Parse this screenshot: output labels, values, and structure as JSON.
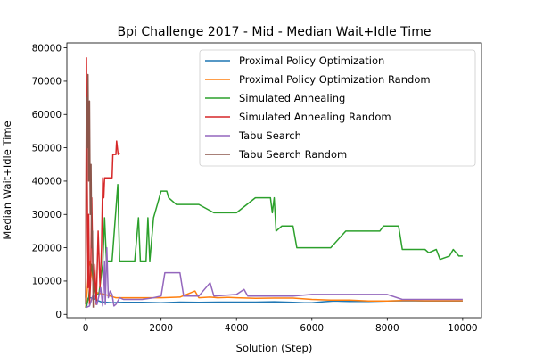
{
  "chart_data": {
    "type": "line",
    "title": "Bpi Challenge 2017 - Mid - Median Wait+Idle Time",
    "xlabel": "Solution (Step)",
    "ylabel": "Median Wait+Idle Time",
    "xlim": [
      -500,
      10500
    ],
    "ylim": [
      -1000,
      81500
    ],
    "xticks": [
      0,
      2000,
      4000,
      6000,
      8000,
      10000
    ],
    "yticks": [
      0,
      10000,
      20000,
      30000,
      40000,
      50000,
      60000,
      70000,
      80000
    ],
    "grid": false,
    "legend_position": "top-right",
    "series": [
      {
        "name": "Proximal Policy Optimization",
        "color": "#1f77b4",
        "points": [
          [
            0,
            2000
          ],
          [
            30,
            2600
          ],
          [
            60,
            4800
          ],
          [
            100,
            5100
          ],
          [
            200,
            4700
          ],
          [
            400,
            3800
          ],
          [
            700,
            3500
          ],
          [
            1000,
            3600
          ],
          [
            1500,
            3600
          ],
          [
            2000,
            3500
          ],
          [
            2500,
            3700
          ],
          [
            3000,
            3600
          ],
          [
            3500,
            3700
          ],
          [
            4000,
            3700
          ],
          [
            4500,
            3700
          ],
          [
            5000,
            3800
          ],
          [
            5500,
            3600
          ],
          [
            5800,
            3500
          ],
          [
            6000,
            3500
          ],
          [
            6300,
            3800
          ],
          [
            6600,
            4000
          ],
          [
            7000,
            3900
          ],
          [
            7500,
            3900
          ],
          [
            8000,
            4000
          ],
          [
            8500,
            4100
          ],
          [
            9000,
            4000
          ],
          [
            9500,
            4000
          ],
          [
            10000,
            4000
          ]
        ]
      },
      {
        "name": "Proximal Policy Optimization Random",
        "color": "#ff7f0e",
        "points": [
          [
            0,
            2000
          ],
          [
            40,
            7000
          ],
          [
            80,
            14000
          ],
          [
            120,
            16000
          ],
          [
            200,
            9000
          ],
          [
            300,
            6500
          ],
          [
            500,
            6000
          ],
          [
            800,
            5000
          ],
          [
            1000,
            5000
          ],
          [
            1500,
            5000
          ],
          [
            2000,
            5000
          ],
          [
            2500,
            5200
          ],
          [
            2900,
            7000
          ],
          [
            3000,
            5000
          ],
          [
            3300,
            5200
          ],
          [
            3500,
            5000
          ],
          [
            3800,
            5100
          ],
          [
            4000,
            5000
          ],
          [
            4500,
            4800
          ],
          [
            5000,
            4900
          ],
          [
            5500,
            4900
          ],
          [
            6000,
            4500
          ],
          [
            6500,
            4300
          ],
          [
            7000,
            4300
          ],
          [
            7500,
            4000
          ],
          [
            8000,
            4000
          ],
          [
            8500,
            4200
          ],
          [
            9000,
            4100
          ],
          [
            9500,
            4100
          ],
          [
            10000,
            4100
          ]
        ]
      },
      {
        "name": "Simulated Annealing",
        "color": "#2ca02c",
        "points": [
          [
            0,
            2000
          ],
          [
            80,
            5000
          ],
          [
            150,
            15000
          ],
          [
            250,
            6000
          ],
          [
            350,
            6000
          ],
          [
            450,
            15000
          ],
          [
            500,
            29000
          ],
          [
            550,
            16000
          ],
          [
            700,
            16000
          ],
          [
            850,
            39000
          ],
          [
            900,
            16000
          ],
          [
            1300,
            16000
          ],
          [
            1400,
            29000
          ],
          [
            1450,
            16000
          ],
          [
            1600,
            16000
          ],
          [
            1650,
            29000
          ],
          [
            1700,
            16000
          ],
          [
            1800,
            29000
          ],
          [
            1900,
            33000
          ],
          [
            2000,
            37000
          ],
          [
            2150,
            37000
          ],
          [
            2200,
            35000
          ],
          [
            2400,
            33000
          ],
          [
            3000,
            33000
          ],
          [
            3400,
            30500
          ],
          [
            4000,
            30500
          ],
          [
            4500,
            35000
          ],
          [
            4900,
            35000
          ],
          [
            4950,
            30500
          ],
          [
            5000,
            35000
          ],
          [
            5050,
            25000
          ],
          [
            5200,
            26500
          ],
          [
            5500,
            26500
          ],
          [
            5600,
            20000
          ],
          [
            6500,
            20000
          ],
          [
            6900,
            25000
          ],
          [
            7800,
            25000
          ],
          [
            7900,
            26500
          ],
          [
            8300,
            26500
          ],
          [
            8400,
            19500
          ],
          [
            9000,
            19500
          ],
          [
            9100,
            18500
          ],
          [
            9300,
            19500
          ],
          [
            9400,
            16500
          ],
          [
            9650,
            17500
          ],
          [
            9750,
            19500
          ],
          [
            9900,
            17500
          ],
          [
            10000,
            17500
          ]
        ]
      },
      {
        "name": "Simulated Annealing Random",
        "color": "#d62728",
        "points": [
          [
            0,
            5000
          ],
          [
            20,
            77000
          ],
          [
            40,
            40000
          ],
          [
            60,
            8000
          ],
          [
            80,
            30000
          ],
          [
            100,
            3000
          ],
          [
            130,
            10000
          ],
          [
            160,
            35000
          ],
          [
            200,
            6000
          ],
          [
            240,
            15000
          ],
          [
            280,
            3000
          ],
          [
            330,
            25000
          ],
          [
            380,
            8000
          ],
          [
            420,
            20000
          ],
          [
            450,
            41000
          ],
          [
            480,
            35000
          ],
          [
            500,
            41000
          ],
          [
            700,
            41000
          ],
          [
            720,
            48000
          ],
          [
            800,
            48000
          ],
          [
            820,
            52000
          ],
          [
            860,
            48000
          ],
          [
            900,
            48500
          ]
        ]
      },
      {
        "name": "Tabu Search",
        "color": "#9467bd",
        "points": [
          [
            0,
            2000
          ],
          [
            100,
            2500
          ],
          [
            200,
            6000
          ],
          [
            300,
            3000
          ],
          [
            400,
            8000
          ],
          [
            450,
            2500
          ],
          [
            500,
            16000
          ],
          [
            520,
            3000
          ],
          [
            560,
            20000
          ],
          [
            600,
            5000
          ],
          [
            650,
            7000
          ],
          [
            700,
            6000
          ],
          [
            750,
            2500
          ],
          [
            800,
            3000
          ],
          [
            900,
            5000
          ],
          [
            1000,
            4500
          ],
          [
            1500,
            4500
          ],
          [
            1800,
            5000
          ],
          [
            2000,
            5500
          ],
          [
            2100,
            12500
          ],
          [
            2500,
            12500
          ],
          [
            2600,
            5500
          ],
          [
            3000,
            5500
          ],
          [
            3300,
            9500
          ],
          [
            3400,
            5500
          ],
          [
            4000,
            6000
          ],
          [
            4200,
            7500
          ],
          [
            4300,
            5500
          ],
          [
            5000,
            5500
          ],
          [
            5500,
            5500
          ],
          [
            6000,
            6000
          ],
          [
            6500,
            6000
          ],
          [
            7000,
            6000
          ],
          [
            7500,
            6000
          ],
          [
            8000,
            6000
          ],
          [
            8400,
            4500
          ],
          [
            9000,
            4500
          ],
          [
            10000,
            4500
          ]
        ]
      },
      {
        "name": "Tabu Search Random",
        "color": "#8c564b",
        "points": [
          [
            0,
            3000
          ],
          [
            20,
            65000
          ],
          [
            40,
            50000
          ],
          [
            60,
            72000
          ],
          [
            80,
            40000
          ],
          [
            100,
            64000
          ],
          [
            120,
            30000
          ],
          [
            140,
            45000
          ],
          [
            160,
            20000
          ],
          [
            180,
            25000
          ],
          [
            200,
            2000
          ]
        ]
      }
    ]
  }
}
